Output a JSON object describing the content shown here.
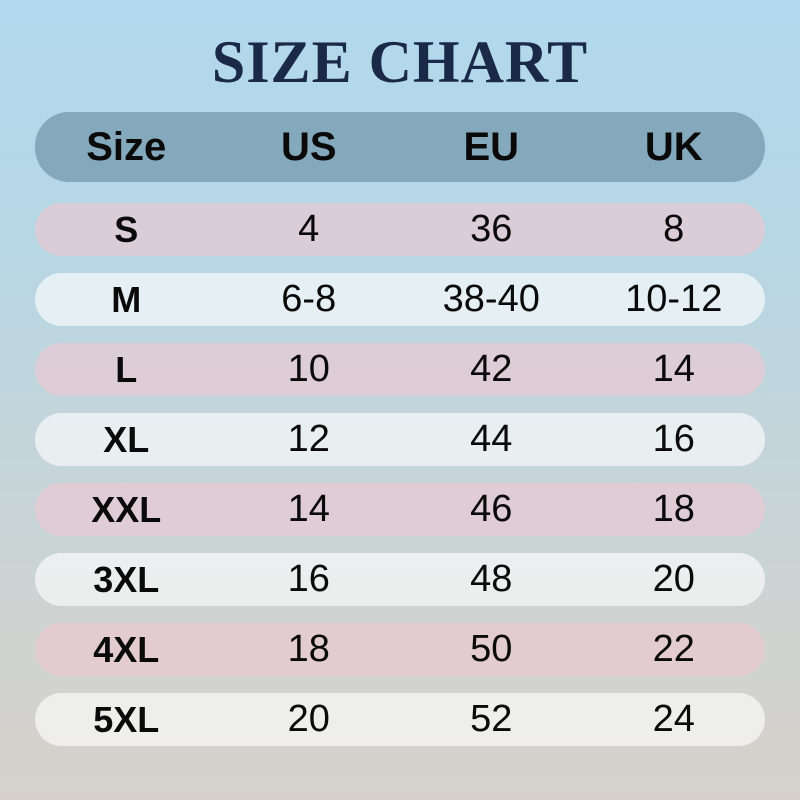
{
  "chart_data": {
    "type": "table",
    "title": "SIZE CHART",
    "columns": [
      "Size",
      "US",
      "EU",
      "UK"
    ],
    "rows": [
      [
        "S",
        "4",
        "36",
        "8"
      ],
      [
        "M",
        "6-8",
        "38-40",
        "10-12"
      ],
      [
        "L",
        "10",
        "42",
        "14"
      ],
      [
        "XL",
        "12",
        "44",
        "16"
      ],
      [
        "XXL",
        "14",
        "46",
        "18"
      ],
      [
        "3XL",
        "16",
        "48",
        "20"
      ],
      [
        "4XL",
        "18",
        "50",
        "22"
      ],
      [
        "5XL",
        "20",
        "52",
        "24"
      ]
    ]
  },
  "colors": {
    "title_text": "#1b2949",
    "header_row_bg": "#85a9bc",
    "row_pink": "rgba(233,201,211,0.72)",
    "row_white": "rgba(255,255,255,0.62)",
    "background_top": "#b1d8ec",
    "background_bottom": "#d6d2cb",
    "table_text": "#0a0a0a"
  }
}
